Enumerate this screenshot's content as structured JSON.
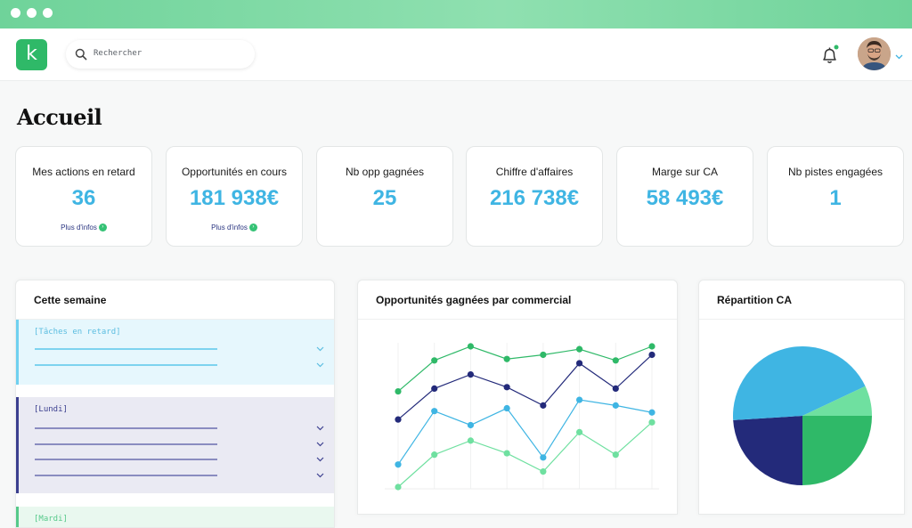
{
  "window": {
    "dots": 3
  },
  "header": {
    "logo_text": "k",
    "search_placeholder": "Rechercher",
    "icons": [
      "search-icon",
      "bell-icon",
      "chevron-down-icon"
    ],
    "notification_dot_color": "#2fb968"
  },
  "page": {
    "title": "Accueil"
  },
  "kpis": [
    {
      "label": "Mes actions en retard",
      "value": "36",
      "more": "Plus d'infos"
    },
    {
      "label": "Opportunités en cours",
      "value": "181 938€",
      "more": "Plus d'infos"
    },
    {
      "label": "Nb opp gagnées",
      "value": "25"
    },
    {
      "label": "Chiffre d'affaires",
      "value": "216 738€"
    },
    {
      "label": "Marge sur CA",
      "value": "58 493€"
    },
    {
      "label": "Nb pistes engagées",
      "value": "1"
    }
  ],
  "week": {
    "title": "Cette semaine",
    "groups": [
      {
        "label": "[Tâches en retard]",
        "rows": 2,
        "accent": "#6fd0ef",
        "bg": "#e6f7fd"
      },
      {
        "label": "[Lundi]",
        "rows": 4,
        "accent": "#3b3f8f",
        "bg": "#eaeaf3"
      },
      {
        "label": "[Mardi]",
        "rows": 0,
        "accent": "#56c98a",
        "bg": "#e9f8ef"
      }
    ]
  },
  "colors": {
    "accent_blue": "#3fb5e3",
    "brand_green": "#2fb968",
    "navy": "#232a7a",
    "light_green": "#6fe0a0"
  },
  "chart_data": [
    {
      "type": "line",
      "title": "Opportunités gagnées par commercial",
      "xlabel": "",
      "ylabel": "",
      "grid": "vertical",
      "legend": "none",
      "x": [
        1,
        2,
        3,
        4,
        5,
        6,
        7,
        8
      ],
      "ylim": [
        0,
        10
      ],
      "series": [
        {
          "color": "#2fb968",
          "values": [
            6.8,
            9.0,
            10.0,
            9.1,
            9.4,
            9.8,
            9.0,
            10.0
          ]
        },
        {
          "color": "#232a7a",
          "values": [
            4.8,
            7.0,
            8.0,
            7.1,
            5.8,
            8.8,
            7.0,
            9.4
          ]
        },
        {
          "color": "#3fb5e3",
          "values": [
            1.6,
            5.4,
            4.4,
            5.6,
            2.1,
            6.2,
            5.8,
            5.3
          ]
        },
        {
          "color": "#6fe0a0",
          "values": [
            0.0,
            2.3,
            3.3,
            2.4,
            1.1,
            3.9,
            2.3,
            4.6
          ]
        }
      ]
    },
    {
      "type": "pie",
      "title": "Répartition CA",
      "legend": "none",
      "slices": [
        {
          "value": 25,
          "color": "#2fb968"
        },
        {
          "value": 24,
          "color": "#232a7a"
        },
        {
          "value": 44,
          "color": "#3fb5e3"
        },
        {
          "value": 7,
          "color": "#6fe0a0"
        }
      ]
    }
  ]
}
